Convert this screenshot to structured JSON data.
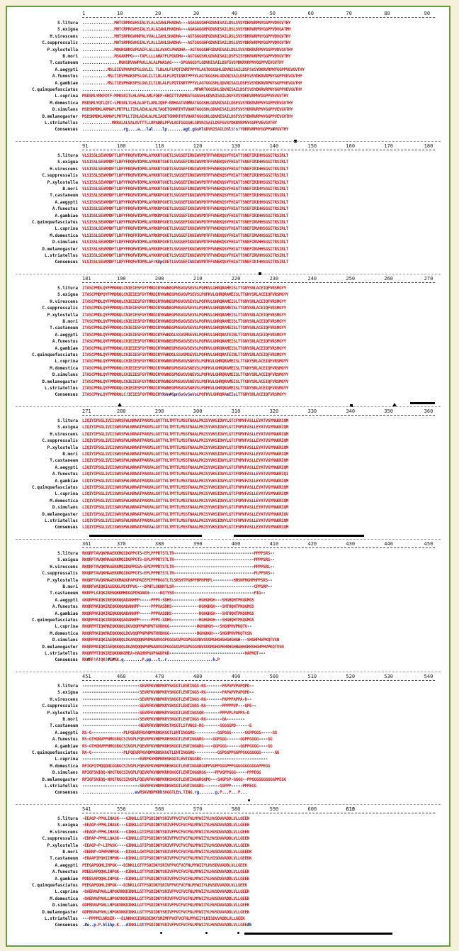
{
  "species": [
    "S.litura",
    "S.exigua",
    "H.virescens",
    "C.suppressalis",
    "P.xylostella",
    "B.mori",
    "T.castaneum",
    "A.aegypti",
    "A.funestus",
    "A.gambiae",
    "C.quinquefasciatus",
    "L.cuprina",
    "M.domestica",
    "D.simulans",
    "D.melanogaster",
    "L.striatellus",
    "Consensus"
  ],
  "blocks": [
    {
      "ticks": [
        "1",
        "10",
        "20",
        "30",
        "40",
        "50",
        "60",
        "70",
        "80",
        "90"
      ],
      "rows": [
        "..............MHTCRPRGVHSIALYLALAIAWLPHADHA---AGAGGGGHFGDVNISAILDSLSVSYDKRVRPNYGGPPVDVGVTHY",
        "..............MHTCRPRGVHSIALYLALAIAWLPHADHA---AGAGGGGHFGDVNISAILDSLSVSYDKRVRPNYGGPPVDVGATMH",
        "..............MHTSRPRGVHNFALYVALLIAHLSHADHA---AGTGGGGHFGDVNISAILDSLSVSYDKRVRPNYGGPPVDVGVTHY",
        "..............MHTSRPRGVHSIALYLALLIAHLSHADHA---AGTGGGGHFGDVNISAILDSLSVSYDKRVRPNYGGPPVDVGVTHY",
        "..............MQGRGRRGVPGAIFLALLALAVACLPHADHA--AGTGGGGHFGDVNISAILDSLSVSYDKRVRPNYGGPPVDVGVTHY",
        "..............MSGAKPPQ---TAPLLLLAHATFLPQVDHV--AGTGGGSHLGDVNISAILDSFSISYDKRVRPNYGGPPVDVGVTHY",
        "................MGHSRVVWPAVLLALALPWASAG----SPGAGGSYLGDVNISAILDSFSVSYDKRVRPNYGGPPVEVGVTHY",
        "...........MSLEIEVPHVRCPSLGVLIL TLNLALFLPQTINRTPPYVLAGTGGGSHLGDVNISAILDSFSVSYDKRVRPNYGGPPVEVGVTHY",
        "...........MSLTIEVPHAKSPSLGVLILTLNLALFLPQTINRTPPYVLAGTGGGSHLGDVNISAILDSFSVSYDKRVRPNYGGPPVEVGVTHY",
        "...........MSLTIEVPHAKSPSLGVLILTLNLALFLPQTINRTPPYVLAGTGGGSHLGDVNISAILDSFSVSYDKRVRPNYGGPPVEVGVTHY",
        ".................................................MFWRTGGGSHLGDVNISAILDSFSVSYDKRVRPNYGGPPVEVGVTHY",
        "MSDSMLYRKFDTF-MPRSRITLHLAFNLAMLFQEP-KKQITTVNMRATGGGSHLGDVNISAILDSFSVSYDKRVRPNYGGPPVEVGVTHY",
        "MSDSMLYQTLQTC-LPKSRLTLHLALAFTLAMLIQEP-RRHAATVNMRATGGGSHLGDVNISAILDSFSVSYDKRVRPNYGGPPVEVGVTHY",
        "MSDSKMDKLARMAPLPRTPLLTIHLAIWLALMLTAQETGHKRTHTVQARTGGGSHLGDVNISAILDSFSVSYDKRVRPNYGGPPVEVGVTHY",
        "MSDSKMDKLARMAPLPRTPLLTIHLAIWLALMLIAQETGHKRTHTVQARTGGGSHLGDVNISAILDSFSVSYDKRVRPNYGGPPVEVGVTHY",
        ".............MRRALALVALAVTTTLLRPADRLPFVLAGTGGGSHLGDVNISAILDSFSVSYDKRVRPNYGGPPVEVGVTHY",
        "..................rg....a...lal....lp.......agt.gGsHlGDVNISAILDSlS!s!YDKRVRPNYGGPPV#VGVTHY"
      ]
    },
    {
      "ticks": [
        "91",
        "100",
        "110",
        "120",
        "130",
        "140",
        "150",
        "160",
        "170",
        "180"
      ],
      "rows": [
        "VLSISSLSEVKMDFTLDFYFRQFWTDPRLAYKKRTGVETLSVGSEFIRNIWVPDTFFVNEKQSYFHIATTSNEFIRIHHSGSITRSIRLT",
        "VLSISSLSEVKMDFTLDFYFRQFWTDPRLAYKKRTGVETLSVGSEFIRNIWVPDTFFVNEKQSYFHIATTSNEFIRIHHSGSITRSIRLT",
        "VLSISSLSEVKMDFTLDFYFRQFWTDPRLAYKKRTGVETLSVGSEFIRNIWVPDTFFVNEKQSYFHIATTSNEFIRIHHSGSITRSIRLT",
        "VLSISSLSEVKMDFTLDFYFRQFWTDPRLAYKKRTGVETLSVGSEFIRNIWVPDTFFVNEKQSYFHIATTSNEFIRIHHSGSITRSIRLT",
        "VLSISSLSEVKMDFTLDFYFRQFWTDPRLAYKKRTGVETLSVGSEFIRNIWVPDTFFVNEKQSYFHIATTSNEFIRIHHSGSITRSIRLT",
        "VLSISSLSEVKMDFTLDFYFRQFWTDPRLAYKKRTGVETLSVGSEFIRNIWVPDTFFVNEKQSYFHIATTSNEFIRIHYSGSITRSIRLT",
        "VLSISSLSEVKMDFTLDFYFRQFWTDPRLAFRKRPGVETLSVGSEFIKNIWVPDTFFVNEKQSYFHIATTSNEFIRIHHSGSITRSIRLT",
        "VLSISSVSEVKMDFTLDFYFRQFWTDPRLAYRKRPGVETLSVGSEFIKNIWVPDTFFVNEKQSYFHIATTSNEFIRIHHSGSITRSIRLT",
        "VLSISSLSEVRMDFTLDFYFRQFWTDPRLAYRKRPGVETLSVGSEFIKNIWVPDTFFVNEKQSYFHIATTSSEFIRIHHSGSITRSIRLT",
        "VLSISSLSEVKMDFTLDFYFRQFWTDPRLAYRKRPGVETLSVGSEFIKNIWVPDTFFVNEKQSYFHIATTSNEFIRIHHSGSITRSIRLT",
        "VLSISSLSEVKMDFTLDFYFRQFWTDPRLAYRKRPGVETLSVGSEFIKNIWVPDTFFVNEKQSYFHIATTSNEFIRVHHSGSITRSIRLT",
        "VLSISSLSEVKMDFTLDFYFRQFWTDPRLAYRKRPGVETLSVGSEFIKNIWVPDTFFVNEKQSYFHIATTSNEFIRVHHSGSITRSIRLT",
        "VLSISSLSEVKMDFTLDFYFRQFRTDPRLAYRKRPGVETLSVGSEFIKNIWVPDTFFVNEKQSYFHIATTSNEFIRVHHSGSITRSIRLT",
        "VLSISSLSEVKMDFTLDFYFRQFWTDPRLAYRKRPGVETLSVGSEFIKNIWVPDTFFVNEKQSYFHIATTSNEFIRVHHSGSITRSIRLT",
        "VLSISSLSEVKMDFTLDFYFRQFWTDPRLAYKKRPGVETLSVGSEFIKNIWVPDTFFVNEKQSYFHIATTSNEFIRVHHSGSITRSIRLT",
        "VLSISSLSEVKMDFTLDFYFRQFWTDPRLAYKKRPGVETLSVGSEFIKNIWVPDTFFVNEKQSYFHIATTSNEFIRVHHSGSITRSIRLT",
        "VLSISSLSEVKMDFTLDFYFRQFWTDPRLAFrKRpGVETLSVGSEFIkNIWVPDTFFVNEKQSYFHIATTSNEFIR!HHSGSITRSIRLT"
      ]
    },
    {
      "ticks": [
        "181",
        "190",
        "200",
        "210",
        "220",
        "230",
        "240",
        "250",
        "260",
        "270"
      ],
      "rows": [
        "ITASCPMDLQYFPMDRQLCNIEIESFGYTMRDIRYKWNEGPNSVGVSEVSLPQFKVLGHRQRAMEISLTTGNYSRLACEIQFVRSMGYY",
        "ITASCPMDPQYFPMDRQLCNIEIESFGYTMRDIRYKWNEGPNSVGVPSEVSLPQFKVLGHRQRAMEISLTTGNYSRLACEIQFVRSMGYY",
        "ITASCPMDLQYFPMDRQLCNIEIESFGYTMRDIRYKWNEGPNSVGVSEVSLPQFKVLGHRQRAMEISLTTGNYSRLACEIQFVRSMGYY",
        "ITASCPMDLQYFPMDRQLCNIEIESFGYTMRDIRYKWNEGPNSVGVSEVSLPQFKVLGHRQRAMEISLTTGNYSRLACEIQFVRSMGYY",
        "ITASCPMDLQYFPMDRQLCNIEIESFGYTMRDIRYKWNEGPNSVGVSEVSLPQFKVLGHRQRAMEISLTTGNYSRLACEIQFVRSMGYY",
        "ITVSCPMDLQYFPMDRQLCNIEIESFGYTMRDIRYKWNEGPNSVGVSEVSLPQFKVLGHRQRAMEISLTTGNYSRLACEIQFVRSMGYY",
        "ITASCPMNLQYFPMDRQLCHIEIESFGYTMRDIRYKWNEGPNSVGVSEVSLPQFKVLGHRQRAMEISLTTGNYSRLACEIQFVRSMGYY",
        "ITASCPMNLQYFPMDRQLCHIEIESFGYTMRDIRYFWKDGLSSVGMSEVELPQFKVLGHRQRATEINLTTGNYSRLACEIQFVRSMGYY",
        "ITASCPMNLQYFPMDRQLCHIEIESFGYTMRDIRYKWNEGPNSVGVSEVSLPQFKVLGHRQRAMEISLTTGNYSRLACEIQFVRSMGYY",
        "ITASCPMNLQYFPMDRQLCHIEIESFGYTMRDIRYKWNEGPNSVGVSEVSLPQFKVLGHRQRAMEISLTTGNYSRLACEIQFVRSMGYY",
        "ITASCPMNLQYFPMDRQLCHIEIESFGYTMRDIRYFWKDGLSSVGMSEVELPQFKVLGHRQRATEINLTTGNYSRLACEIQFVRSMGYY",
        "ITASCPMNLQYFPMDRQLCHIEIESFGYTMRDIRYKWNEGPNSVGVSNEVSLPQFKVLGHRQRAMEISLTTGNYSRLACEIQFVRSMGYY",
        "ITASCPMNLQYFPMDRQLCHIEIESFGYTMRDIRYKWNEGPNSVGVSNEVSLPQFKVLGHRQRAMEISLTTGNYSRLACEIQFVRSMGYY",
        "ITASCPMNLQYFPMDRQLCHIEIESFGYTMRDIRYKWNEGPNSVGVSNEVSLPQFKVLGHRQRAMEISLTTGNYSRLACEIQFVRSMGYY",
        "ITASCPMNLQYFPMDRQLCHIEIESFGYTMRDIRYKWNEGPNSVGVSNEVSLPQFKVLGHRQRAMEISLTTGNYSRLACEIQFVRSMGYY",
        "ITASCPMNLQYFPMDRQLCHIEIESFGYTMRDIRYKWNEGPNSVGVSNEVSLPQFKVLGHRQRAMEISLTTGNYSRLACEIQFVRSMGYY",
        "ITASCPMnLQYFPMDRQLC!IEIESFGYTMRDIRYkWn#GpnSvGvSeVsLPQFKVLGHRQRAmEIsLTTGNYSRLACEIQFVRSMGYY"
      ]
    },
    {
      "ticks": [
        "271",
        "280",
        "290",
        "300",
        "310",
        "320",
        "330",
        "340",
        "350",
        "360"
      ],
      "rows": [
        "LIQIYIPSGLIVIISWVSFWLNRNATPARVSLGVTTVLTMTTLMSSTNAALPKISYVKSIDVYLGTCFVMVFASLLEYATVGYMAKRIQM",
        "LIQIYIPSGLIVIISWVSFWLNRNATPARVSLGVTTVLTMTTLMSSTNAALPKISYVKSIDVYLGTCFVMVFASLLEYATVGYMAKRIQM",
        "LIQIYIPSGLIVIISWVSFWLNRNATPARVSLGVTTVLTMTTLMSSTNAALPKISYVKSIDVYLGTCFVMVFASLLEYATVGYMAKRIQM",
        "LIQIYIPSGLIVIISWVSFWLNRNATPARVSLGVTTVLTMTTLMSSTNAALPKISYVKSIDVYLGTCFVMVFASLLEYATVGYMAKRIQM",
        "LIQIYIPSGLIVIISWVSFWLNRNATPARVSLGVTTVLTMTTLMSSTNAALPKISYVKSIDVYLGTCFVMVFASLLEYATVGYMAKRIQM",
        "LIQIYIPSGLIVIISWVSFWLNRNATPARVSLGVTTVLTMTTLMSSTNAALPKISYVKSIDVYLGTCFVMVFASLLEYATVGYMAKRIQM",
        "LIQIYIPSGLIVIISWVSFWLNRNATPARVALGVTTVLTMTTLMSSTNAALPKISYVKSIDVYLGTCFVMVFASLLEYATVGYMAKRIQM",
        "LIQIYIPSGLIVIISWVSFWLNRNATPARVALGVTTVLTMTTLMSSTNAALPKISYVKSIDVYLGTCFVMVFASLLEYATVGYMAKRIQM",
        "LIQIYIPSGLIVIISWVSFWLNRNATPARVALGVTTVLTMTTLMSSTNAALPKISYVKSIDVYLGTCFVMVFASLLEYATVGYMAKRIQI",
        "LIQIYIPSGLIVIISWVSFWLNRNATPARVALGVTTVLTMTTLMSSTNAALPKISYVKSIDVYLGTCFVMVFASLLEYATVGYMAKRIQM",
        "LIQIYIPSGLIVIISWVSFWLNRNATPARVALGVTTVLTMTTLMSSTNAALPKISYVKSIDVYLGTCFVMVFASLLEYATVGYMAKRIQM",
        "LIQIYIPSGLIVIISWVSFWLNRNATPARVALGVTTVLTMTTLMSSTNAALPKISYVKSIDVYLGTCFVMVFASLLEYATVGYMAKRIQM",
        "LIQIYIPSGLIVIISWVSFWLNRNATPARVALGVTTVLTMTTLMSSTNAALPKISYVKSIDVYLGTCFVMVFASLLEYATVGYMAKRIQM",
        "LIQIYIPSGLIVIISWVSFWLNRNATPARVALGVTTVLTMTTLMSSTNAALPKISYVKSIDVYLGTCFVMVFASLLEYATVGYMAKRIQM",
        "LIQIYIPSGLIVIISWVSFWLNRNATPARVALGVTTVLTMTTLMSSTNAALPKISYVKSIDVYLGTCFVMVFASLLEYATVGYMAKRIQV",
        "LIQIYIPSGLIVIISWVSFWLNRNATPARVALGVTTVLTMTTLMSSTNAALPKISYVKSIDVYLGTCFVMVFASLLEYATVGYMAKRIQM",
        "LIQIYIPSGLIVIISWVSFWLNRNATPARVaLGVTTVLTMTTLMSSTNAALPKISYVKSIDVYLGTCFVMVFASLLEYATVGYMAKRIQM"
      ]
    },
    {
      "ticks": [
        "361",
        "370",
        "380",
        "390",
        "400",
        "410",
        "420",
        "430",
        "440",
        "450"
      ],
      "rows": [
        "RKQRFTAVQKMAAEKKMQIDGPPGTS-EPLPPPRTSTLTR-----------------------------------PPPPSRS--",
        "RKQRFTAVQKMAAEKKMQIDGPPGTS-EPLPPPRTSTLTR-----------------------------------PPPPSRS--",
        "RKQRFTAVQKMAAEKKMQIDGPPGSA-EPIPPPRTSTLTR-----------------------------------PPPPSRL--",
        "RKQRFTAVQKMAAEKKMQIDGPPGTS-EPLPPPRTSTLTR-----------------------------------PLPPSRS--",
        "RKQRFTAVQKMAAEKKMADGPAPGPAIEPIPPPRGGTLTLSRSHTPGHPPHPHPHPL---------HHSHPHGHPHPPSRS--",
        "RKQRFVAIQKIASEKKLPECPPVG---DPHTLSKNNTLSR-----------------------------------CPPSRP--",
        "RKRPFLAIQKIRENQKKMHDGGPDSDAKN-----KQTYSR-----------------------------------PIG--",
        "GKQRFMAIQKIREQKKQQADANHPP-----PPPV-SDHS------------HGHGHGH---SHGHQHTPKQGMGS",
        "RKQRFMAIQKIREQKKQQADANHPP-----PPPVASDHS------------HGHGHGH---SHTHQHTPKQGMGS",
        "RKQRFMAIQKIREQKKQQADANHPP-----PPPVASDHS------------HGHGHGH---SHTHQHTPKQGMGS",
        "RKQRFMAIQKIREQKKQQADANHPP-----PPPV-SDHS------------HGHGHGH---SHGHQHTPKQGMGS",
        "RKQRFMTIQKMAEQKKQQLDGVQQPPNPNPNTGVDHGG------------HGHGHGH---SHGHPHVPKQTV--",
        "RKQRFMAIQKMAEQKKQQLDGVQQPPNPNPNTNVDHGG------------HGHGHGH---SHGHPHVPKQTVSN",
        "RKQRFMAIQKIAEQKKQQLDGANQQQNPNPNANVGGPGGGVGVPGGPGGGVNVGVGMGHGHGHGHGHGH---SHGHPHVPKQTVSN",
        "RKQRFMAIQKIAEQKKQQLDGANQQQNPNPNANVGGPGGGVGVPGGPGGGVNVGVGMGHGPEHRHGHHAHHGHHSHGHPHVPKQTVSN",
        "RKQRFMTIQKIREQKKQKGMEA-HAGHHPGVPGGDPAD---------------------------------HAPKQT---",
        "RK#RF!A!QK!#E#KK.q........P.pp...t..r....................h.P"
      ]
    },
    {
      "ticks": [
        "451",
        "460",
        "470",
        "480",
        "490",
        "500",
        "510",
        "520",
        "530",
        "540"
      ],
      "rows": [
        "-------------------------SEVRFKVHDPKRYSKGGTLENTINGS-RG-------PAPAPVPAPQPD--",
        "-------------------------SEVRFKVHDPKRYSKGGTLENTINGS-RG-------PAPAPVPAPQPD--",
        "-------------------------SEVRFKVHDPKRYSKGGTLENTINGS-RG-------PAPPPAPPA-D--",
        "-------------------------SEVRFKVHDPKRYSKGGTLENTINGS-RA-------PPPPPVP---QPE--",
        "-------------------------SEVRFKVHDPKRYSKGGTLENTINGSQR-------PPPVPLPAPPA-D",
        "-------------------------SEVRFKVHDPKRYSKGGTLENTINGS-RG-------GA--------",
        "-------------------------HEVRFKVHDPKRSTKGGTLSTVNGS-RG-------GGGGGPD------E",
        "RS-G--------------PLFQEVRFKVHDPKRHSKGGTLENTINGGRG----------GGPGGG------GGPPGGG-----GG",
        "RS-GTHQNVPPNMGSRGCSIVGPLFQEVRFKVHDPKRHSKGGTLENTINGGRG----GGPGGG------GGPPGGGG----GG",
        "RS-GTHQNVPPNMGSRGCSIVGPLFQEVRFKVHDPKRHSKGGTLENTINGGRG----GGPGGG------GGPPGGGG----GG",
        "RA-G--------------PLFQEVRFKVHDPKRHSKGGTLENTINGGRG----------GGPGGPPGGPPGGGGGGGG------GG",
        "-------------------------EVRFKVHDPKRHSKGGTLENTINGGRG-----------------------------",
        "RPIGFQTMQQQNIGGRGCSIVGPLFQEVRFKVHDPKRHSKGGTLENTINGGRGGPPVGPPGGGPPPGGGGGGGGGGAPPEGG",
        "RPIGFSNIQQ-NVGTRGCSIVGPLFQEVRFKVHDPKRHSKGGTLENTINGGRGG----PPVGPPGGG-----PPPEGG",
        "RPIGFSNIQQ-NVGTRGCSIVGPLFQEVRFKVHDPKRHSKGGTLENTINGGRGGPQ---SHGPSP-GGGG--PPGGGGGGGGGGPPEGG",
        "-------------------------SEVRFKVHDPKRHSKGGTLENTINGGRG-------GGPPP-----PPPEGG",
        ".......................evRSKVHDPKRhSKGGTLEn.TING.rg.......g.P...P...P..."
      ]
    },
    {
      "ticks": [
        "541",
        "550",
        "560",
        "570",
        "580",
        "590",
        "600",
        "610",
        "613"
      ],
      "rows": [
        "-EEAGP-PPHLIHASK---GINKLLGTIPSDIDKYSRIVFPVCFVCFNLMYWIIYLHVSDVVADDLVLLGEEN",
        "-EEAGP-PPHLIHASK---GINKLLGTIPSDIDKYSRIVFPVCFVCFNLMYWIIYLHVSDVVADDLVLLGEEN",
        "-EEAGP-PPHLIHASK---GINKLLGTIPSDIDKYSRIVFPVCFVCFNLMYWIIYLHVSDVVADDLVLLGEEN",
        "-EDPAP-PPHLLQASK---GINKLLGTIPSDIDKYSRIVFPVCFVCFNLMYWIIYLHVSDVVADDLVLLGEEN",
        "-EEAGP-P-LIPASK----GINKLLGTIPSDIDKYSRIVFPVCFVCFNLMYWIIYLHVSDVVADDLVLLGEEN",
        "-DEENP-GPHPVHPGK---DISKLLGHTPSDIDKYSRIVFPVCFVCFNLMYWIIYLHVSDVVADDLVLLGEEDK",
        "-ERAAPIPQHIIHPNK---DINKLLGTIPSDIDKYSRIVFPVCFVCFNLMYWIIYLHISDVVADDLVLLGEEDK",
        "PEEGAPQQHLIHPGK---DINKLLGTTPSDIDKYSRIVFPVCFVCFNLMYWIIYLHVSDVVADDLVLLGEEK",
        "PDEESAPQQHLIHPGK---DINKLLGTTPSDIDKYSRIVFPVCFVCFNLMYWIIYLHVSDVVADDLVLLGEEK",
        "PDEESAPQQHLIHPGK---DINKLLGTTPSDIDKYSRIVFPVCFVCFNLMYWIIYLHVSDVVADDLVLLGEEK",
        "PEEGAPQQHLIHPGK---DINKLLGTTPSDIDKYSRIVFPVCFVCFNLMYWIIYLHVSDVVADDLVLLGEEK",
        "-DAERAVPAHLLHPGKVKKDINKLLGTTPSDIDKYSRIVFPVCFVCFNLMYWIIYLHVSDVVADDLVLLGEEK",
        "-DAERAVPAHLLHPGKVKKDINKLLGTTPSDIDKYSRIVFPVCFVCFNLMYWIIYLHVSDVVADDLVLLGEEK",
        "GDPERAVPAHLLHPGKVKKDINKLLGTTPSDIDKYSRIVFPVCFVCFNLMYWIIYLHVSDVVADDLVLLGEEK",
        "GDPERAVPAHLLHPGKVKKDINKLLGTTPSDIDKYSRIVFPVCFVCFNLMYWIIYLHVSDVVADDLVLLGEEK",
        "---PPPPELNRSER---ELNKNCGISRSDIDKYSRIMFPVCFVCFNLMYWIIYLHISDVVADDLVLLGEEK",
        ".#e..p.P.hlihp.K...dINKLLGtTPSDIDKYSRIVFPVCFVCFNLMYWIIYLHVSDVVADDLVLLGEE#k"
      ]
    }
  ]
}
